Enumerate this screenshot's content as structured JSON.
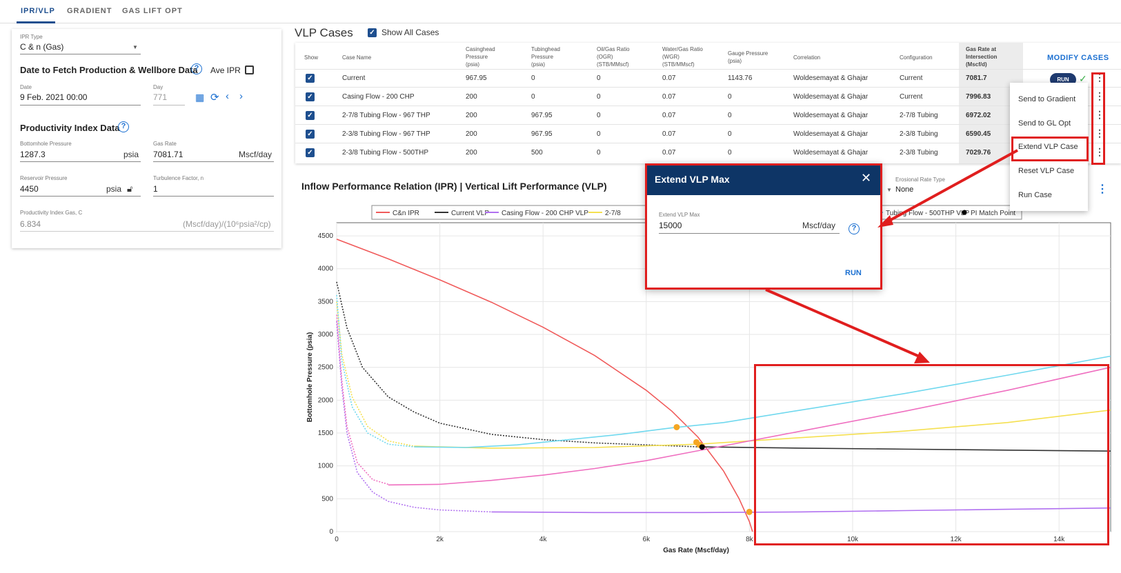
{
  "tabs": [
    {
      "label": "IPR/VLP",
      "active": true
    },
    {
      "label": "GRADIENT",
      "active": false
    },
    {
      "label": "GAS LIFT OPT",
      "active": false
    }
  ],
  "ipr": {
    "type_label": "IPR Type",
    "type_value": "C & n (Gas)",
    "fetch_title": "Date to Fetch Production & Wellbore Data",
    "ave_ipr_label": "Ave IPR",
    "date_label": "Date",
    "date_value": "9 Feb. 2021 00:00",
    "day_label": "Day",
    "day_value": "771",
    "pi_title": "Productivity Index Data",
    "bhp_label": "Bottomhole Pressure",
    "bhp_value": "1287.3",
    "bhp_unit": "psia",
    "gas_rate_label": "Gas Rate",
    "gas_rate_value": "7081.71",
    "gas_rate_unit": "Mscf/day",
    "res_label": "Reservoir Pressure",
    "res_value": "4450",
    "res_unit": "psia",
    "turb_label": "Turbulence Factor, n",
    "turb_value": "1",
    "pi_gas_label": "Productivity Index Gas, C",
    "pi_gas_value": "6.834",
    "pi_gas_unit": "(Mscf/day)/(10⁶psia²/cp)"
  },
  "vlp": {
    "title": "VLP Cases",
    "show_all_label": "Show All Cases",
    "modify_label": "MODIFY CASES",
    "run_label": "RUN",
    "headers": {
      "show": "Show",
      "case": "Case Name",
      "casing": [
        "Casinghead",
        "Pressure",
        "(psia)"
      ],
      "tubing": [
        "Tubinghead",
        "Pressure",
        "(psia)"
      ],
      "ogr": [
        "Oil/Gas Ratio",
        "(OGR)",
        "(STB/MMscf)"
      ],
      "wgr": [
        "Water/Gas Ratio",
        "(WGR)",
        "(STB/MMscf)"
      ],
      "gauge": [
        "Gauge Pressure",
        "(psia)"
      ],
      "corr": "Correlation",
      "config": "Configuration",
      "gasrate": [
        "Gas Rate at",
        "Intersection",
        "(Mscf/d)"
      ]
    },
    "rows": [
      {
        "case": "Current",
        "casing": "967.95",
        "tubing": "0",
        "ogr": "0",
        "wgr": "0.07",
        "gauge": "1143.76",
        "corr": "Woldesemayat & Ghajar",
        "config": "Current",
        "rate": "7081.7"
      },
      {
        "case": "Casing Flow - 200 CHP",
        "casing": "200",
        "tubing": "0",
        "ogr": "0",
        "wgr": "0.07",
        "gauge": "0",
        "corr": "Woldesemayat & Ghajar",
        "config": "Current",
        "rate": "7996.83"
      },
      {
        "case": "2-7/8 Tubing Flow - 967 THP",
        "casing": "200",
        "tubing": "967.95",
        "ogr": "0",
        "wgr": "0.07",
        "gauge": "0",
        "corr": "Woldesemayat & Ghajar",
        "config": "2-7/8 Tubing",
        "rate": "6972.02"
      },
      {
        "case": "2-3/8 Tubing Flow - 967 THP",
        "casing": "200",
        "tubing": "967.95",
        "ogr": "0",
        "wgr": "0.07",
        "gauge": "0",
        "corr": "Woldesemayat & Ghajar",
        "config": "2-3/8 Tubing",
        "rate": "6590.45"
      },
      {
        "case": "2-3/8 Tubing Flow - 500THP",
        "casing": "200",
        "tubing": "500",
        "ogr": "0",
        "wgr": "0.07",
        "gauge": "0",
        "corr": "Woldesemayat & Ghajar",
        "config": "2-3/8 Tubing",
        "rate": "7029.76"
      }
    ]
  },
  "context_menu": {
    "items": [
      "Send to Gradient",
      "Send to GL Opt",
      "Extend VLP Case",
      "Reset VLP Case",
      "Run Case"
    ]
  },
  "dialog": {
    "title": "Extend VLP Max",
    "field_label": "Extend VLP Max",
    "field_value": "15000",
    "field_unit": "Mscf/day",
    "run_label": "RUN"
  },
  "chart_header": {
    "title": "Inflow Performance Relation (IPR) | Vertical Lift Performance (VLP)",
    "erosional_label": "Erosional Rate Type",
    "erosional_value": "None"
  },
  "colors": {
    "accent": "#1e4f8f",
    "highlight_red": "#e01e1e",
    "ipr": "#f05a5a",
    "current_vlp": "#333333",
    "casing_vlp": "#b070f0",
    "tubing_278": "#f5e050",
    "tubing_238_967": "#ef6fc0",
    "tubing_238_500": "#6fd8ee",
    "intersection": "#f5a623"
  },
  "chart_data": {
    "type": "line",
    "title": "",
    "xlabel": "Gas Rate (Mscf/day)",
    "ylabel": "Bottomhole Pressure (psia)",
    "xlim": [
      0,
      15000
    ],
    "ylim": [
      0,
      4700
    ],
    "x_ticks": [
      0,
      2000,
      4000,
      6000,
      8000,
      10000,
      12000,
      14000
    ],
    "x_tick_labels": [
      "0",
      "2k",
      "4k",
      "6k",
      "8k",
      "10k",
      "12k",
      "14k"
    ],
    "y_ticks": [
      0,
      500,
      1000,
      1500,
      2000,
      2500,
      3000,
      3500,
      4000,
      4500
    ],
    "grid": true,
    "legend_position": "top",
    "legend": [
      "C&n IPR",
      "Current VLP",
      "Casing Flow - 200 CHP VLP",
      "2-7/8",
      "Tubing Flow - 500THP VLP",
      "PI Match Point"
    ],
    "series": [
      {
        "name": "C&n IPR",
        "color": "#f05a5a",
        "dashed": false,
        "x": [
          0,
          1000,
          2000,
          3000,
          4000,
          5000,
          6000,
          6500,
          7000,
          7500,
          7800,
          8000,
          8060
        ],
        "y": [
          4450,
          4150,
          3830,
          3490,
          3110,
          2680,
          2150,
          1830,
          1440,
          920,
          500,
          150,
          0
        ]
      },
      {
        "name": "Current VLP",
        "color": "#333333",
        "dashed": true,
        "x": [
          0,
          200,
          500,
          1000,
          1500,
          2000,
          3000,
          4000,
          5000,
          6000,
          7000
        ],
        "y": [
          3800,
          3100,
          2500,
          2050,
          1820,
          1650,
          1480,
          1400,
          1350,
          1320,
          1290
        ]
      },
      {
        "name": "Current VLP (extended)",
        "color": "#333333",
        "dashed": false,
        "x": [
          7000,
          9000,
          11000,
          13000,
          15000
        ],
        "y": [
          1290,
          1270,
          1255,
          1240,
          1225
        ]
      },
      {
        "name": "Casing Flow - 200 CHP VLP",
        "color": "#b070f0",
        "dashed": true,
        "x": [
          0,
          100,
          200,
          400,
          700,
          1000,
          1500,
          2000,
          3000
        ],
        "y": [
          3200,
          2200,
          1500,
          900,
          600,
          460,
          370,
          330,
          300
        ]
      },
      {
        "name": "Casing Flow - 200 CHP VLP (extended)",
        "color": "#b070f0",
        "dashed": false,
        "x": [
          3000,
          5000,
          7000,
          9000,
          11000,
          13000,
          15000
        ],
        "y": [
          300,
          290,
          290,
          300,
          320,
          340,
          360
        ]
      },
      {
        "name": "2-7/8",
        "color": "#f5e050",
        "dashed": true,
        "x": [
          0,
          100,
          300,
          600,
          1000,
          1500
        ],
        "y": [
          3500,
          2700,
          2050,
          1600,
          1380,
          1300
        ]
      },
      {
        "name": "2-7/8 (extended)",
        "color": "#f5e050",
        "dashed": false,
        "x": [
          1500,
          3000,
          5000,
          7000,
          9000,
          11000,
          13000,
          15000
        ],
        "y": [
          1300,
          1270,
          1280,
          1330,
          1430,
          1530,
          1660,
          1850
        ]
      },
      {
        "name": "2-3/8 Tubing Flow - 967 THP VLP",
        "color": "#ef6fc0",
        "dashed": true,
        "x": [
          0,
          100,
          200,
          400,
          700,
          1000
        ],
        "y": [
          3300,
          2300,
          1600,
          1050,
          790,
          720
        ]
      },
      {
        "name": "2-3/8 Tubing Flow - 967 THP VLP (extended)",
        "color": "#ef6fc0",
        "dashed": false,
        "x": [
          1000,
          2000,
          3000,
          4000,
          5000,
          6000,
          7000,
          9000,
          11000,
          13000,
          15000
        ],
        "y": [
          710,
          720,
          780,
          860,
          960,
          1080,
          1230,
          1530,
          1830,
          2150,
          2500
        ]
      },
      {
        "name": "Tubing Flow - 500THP VLP",
        "color": "#6fd8ee",
        "dashed": true,
        "x": [
          0,
          100,
          300,
          600,
          1000,
          1500
        ],
        "y": [
          3600,
          2600,
          1900,
          1500,
          1330,
          1290
        ]
      },
      {
        "name": "Tubing Flow - 500THP VLP (extended)",
        "color": "#6fd8ee",
        "dashed": false,
        "x": [
          1500,
          2500,
          3500,
          4500,
          5500,
          6500,
          7500,
          9000,
          11000,
          13000,
          15000
        ],
        "y": [
          1290,
          1280,
          1320,
          1400,
          1480,
          1580,
          1660,
          1850,
          2100,
          2380,
          2670
        ]
      }
    ],
    "intersection_points": [
      {
        "x": 6590,
        "y": 1590
      },
      {
        "x": 6972,
        "y": 1360
      },
      {
        "x": 7030,
        "y": 1320
      },
      {
        "x": 7997,
        "y": 300
      }
    ],
    "pi_match_point": {
      "x": 7082,
      "y": 1287
    }
  }
}
